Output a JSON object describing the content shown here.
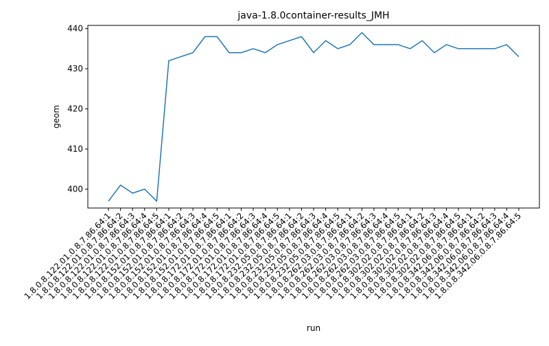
{
  "chart_data": {
    "type": "line",
    "title": "java-1.8.0container-results_JMH",
    "xlabel": "run",
    "ylabel": "geom",
    "ylim": [
      395.3,
      440.8
    ],
    "yticks": [
      400,
      410,
      420,
      430,
      440
    ],
    "grid": false,
    "line_color": "#1f77b4",
    "x": [
      "1.8.0.8.122.01.0.8.7.86.64:1",
      "1.8.0.8.122.01.0.8.7.86.64:2",
      "1.8.0.8.122.01.0.8.7.86.64:3",
      "1.8.0.8.122.01.0.8.7.86.64:4",
      "1.8.0.8.122.01.0.8.7.86.64:5",
      "1.8.0.8.152.01.0.8.7.86.64:1",
      "1.8.0.8.152.01.0.8.7.86.64:2",
      "1.8.0.8.152.01.0.8.7.86.64:3",
      "1.8.0.8.152.01.0.8.7.86.64:4",
      "1.8.0.8.152.01.0.8.7.86.64:5",
      "1.8.0.8.172.01.0.8.7.86.64:1",
      "1.8.0.8.172.01.0.8.7.86.64:2",
      "1.8.0.8.172.01.0.8.7.86.64:3",
      "1.8.0.8.172.01.0.8.7.86.64:4",
      "1.8.0.8.172.01.0.8.7.86.64:5",
      "1.8.0.8.232.05.0.8.7.86.64:1",
      "1.8.0.8.232.05.0.8.7.86.64:2",
      "1.8.0.8.232.05.0.8.7.86.64:3",
      "1.8.0.8.232.05.0.8.7.86.64:4",
      "1.8.0.8.232.05.0.8.7.86.64:5",
      "1.8.0.8.262.03.0.8.7.86.64:1",
      "1.8.0.8.262.03.0.8.7.86.64:2",
      "1.8.0.8.262.03.0.8.7.86.64:3",
      "1.8.0.8.262.03.0.8.7.86.64:4",
      "1.8.0.8.262.03.0.8.7.86.64:5",
      "1.8.0.8.302.02.0.8.7.86.64:1",
      "1.8.0.8.302.02.0.8.7.86.64:2",
      "1.8.0.8.302.02.0.8.7.86.64:3",
      "1.8.0.8.302.02.0.8.7.86.64:4",
      "1.8.0.8.302.02.0.8.7.86.64:5",
      "1.8.0.8.342.06.0.8.7.86.64:1",
      "1.8.0.8.342.06.0.8.7.86.64:2",
      "1.8.0.8.342.06.0.8.7.86.64:3",
      "1.8.0.8.342.06.0.8.7.86.64:4",
      "1.8.0.8.342.06.0.8.7.86.64:5"
    ],
    "y": [
      397,
      401,
      399,
      400,
      397,
      432,
      433,
      434,
      438,
      438,
      434,
      434,
      435,
      434,
      436,
      437,
      438,
      434,
      437,
      435,
      436,
      439,
      436,
      436,
      436,
      435,
      437,
      434,
      436,
      435,
      435,
      435,
      435,
      436,
      433
    ]
  }
}
